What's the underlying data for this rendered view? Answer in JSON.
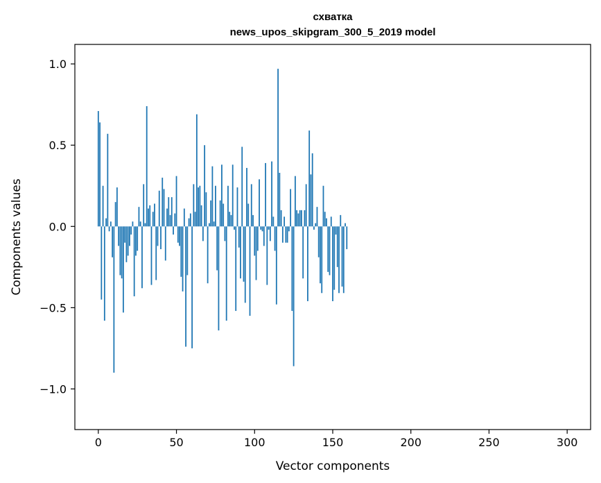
{
  "chart_data": {
    "type": "bar",
    "title": "схватка",
    "subtitle": "news_upos_skipgram_300_5_2019 model",
    "xlabel": "Vector components",
    "ylabel": "Components values",
    "xlim": [
      -15,
      315
    ],
    "ylim": [
      -1.25,
      1.12
    ],
    "xticks": [
      0,
      50,
      100,
      150,
      200,
      250,
      300
    ],
    "yticks": [
      -1.0,
      -0.5,
      0.0,
      0.5,
      1.0
    ],
    "ytick_labels": [
      "−1.0",
      "−0.5",
      "0.0",
      "0.5",
      "1.0"
    ],
    "bar_color": "#1f77b4",
    "grid": false,
    "x_start": 0,
    "values": [
      0.71,
      0.64,
      -0.45,
      0.25,
      -0.58,
      0.05,
      0.57,
      -0.03,
      0.03,
      -0.19,
      -0.9,
      0.15,
      0.24,
      -0.12,
      -0.3,
      -0.32,
      -0.53,
      -0.1,
      -0.22,
      -0.18,
      -0.12,
      -0.05,
      0.03,
      -0.43,
      -0.18,
      -0.15,
      0.12,
      0.03,
      -0.38,
      0.26,
      0.02,
      0.74,
      0.11,
      0.13,
      -0.36,
      0.09,
      0.14,
      -0.33,
      -0.12,
      0.22,
      -0.14,
      0.3,
      0.23,
      -0.21,
      0.11,
      0.18,
      0.07,
      0.18,
      -0.05,
      0.08,
      0.31,
      -0.1,
      -0.12,
      -0.31,
      -0.4,
      0.11,
      -0.74,
      -0.3,
      0.05,
      0.08,
      -0.75,
      0.26,
      0.09,
      0.69,
      0.24,
      0.25,
      0.13,
      -0.09,
      0.5,
      0.21,
      -0.35,
      0.02,
      0.16,
      0.37,
      0.03,
      0.25,
      -0.27,
      -0.64,
      0.16,
      0.38,
      0.14,
      -0.09,
      -0.58,
      0.25,
      0.09,
      0.07,
      0.38,
      -0.02,
      -0.52,
      0.24,
      -0.13,
      -0.32,
      0.49,
      -0.34,
      -0.47,
      0.36,
      0.14,
      -0.55,
      0.26,
      0.07,
      -0.18,
      -0.33,
      -0.15,
      0.29,
      -0.02,
      -0.03,
      -0.12,
      0.39,
      -0.36,
      -0.02,
      -0.09,
      0.4,
      0.06,
      -0.15,
      -0.48,
      0.97,
      0.33,
      0.1,
      -0.1,
      0.06,
      -0.1,
      -0.1,
      -0.03,
      0.23,
      -0.52,
      -0.86,
      0.31,
      0.1,
      0.08,
      0.1,
      0.1,
      -0.32,
      0.1,
      0.26,
      -0.46,
      0.59,
      0.32,
      0.45,
      -0.02,
      0.02,
      0.12,
      -0.19,
      -0.35,
      -0.41,
      0.25,
      0.09,
      0.05,
      -0.28,
      -0.3,
      0.06,
      -0.46,
      -0.39,
      -0.05,
      -0.25,
      -0.41,
      0.07,
      -0.37,
      -0.41,
      0.02,
      -0.14
    ]
  }
}
